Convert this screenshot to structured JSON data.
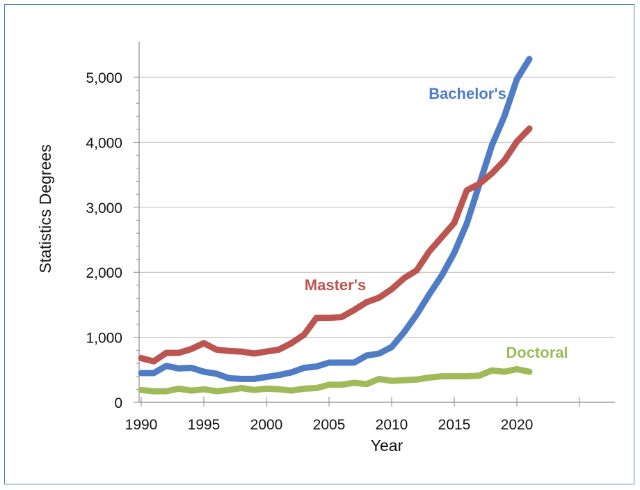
{
  "chart_data": {
    "type": "line",
    "xlabel": "Year",
    "ylabel": "Statistics Degrees",
    "xlim": [
      1990,
      2025
    ],
    "ylim": [
      0,
      5000
    ],
    "x_ticks": [
      1990,
      1995,
      2000,
      2005,
      2010,
      2015,
      2020
    ],
    "y_ticks": [
      {
        "value": 0,
        "label": "0"
      },
      {
        "value": 1000,
        "label": "1,000"
      },
      {
        "value": 2000,
        "label": "2,000"
      },
      {
        "value": 3000,
        "label": "3,000"
      },
      {
        "value": 4000,
        "label": "4,000"
      },
      {
        "value": 5000,
        "label": "5,000"
      }
    ],
    "grid": "horizontal",
    "x": [
      1990,
      1991,
      1992,
      1993,
      1994,
      1995,
      1996,
      1997,
      1998,
      1999,
      2000,
      2001,
      2002,
      2003,
      2004,
      2005,
      2006,
      2007,
      2008,
      2009,
      2010,
      2011,
      2012,
      2013,
      2014,
      2015,
      2016,
      2017,
      2018,
      2019,
      2020,
      2021
    ],
    "series": [
      {
        "name": "Bachelor's",
        "color": "#4f7cc4",
        "values": [
          450,
          450,
          560,
          520,
          530,
          470,
          440,
          370,
          360,
          360,
          390,
          420,
          460,
          530,
          550,
          610,
          610,
          610,
          720,
          750,
          850,
          1080,
          1350,
          1660,
          1950,
          2300,
          2750,
          3350,
          3950,
          4400,
          4970,
          5280
        ]
      },
      {
        "name": "Master's",
        "color": "#bb5552",
        "values": [
          680,
          630,
          760,
          760,
          820,
          910,
          810,
          790,
          780,
          750,
          780,
          810,
          910,
          1040,
          1300,
          1300,
          1310,
          1420,
          1540,
          1610,
          1740,
          1910,
          2030,
          2320,
          2540,
          2760,
          3260,
          3360,
          3520,
          3720,
          4010,
          4210
        ]
      },
      {
        "name": "Doctoral",
        "color": "#9fbb59",
        "values": [
          190,
          170,
          170,
          210,
          180,
          200,
          170,
          190,
          220,
          190,
          210,
          200,
          180,
          210,
          220,
          270,
          270,
          300,
          280,
          360,
          330,
          340,
          350,
          380,
          400,
          400,
          400,
          410,
          490,
          470,
          510,
          470
        ]
      }
    ]
  }
}
